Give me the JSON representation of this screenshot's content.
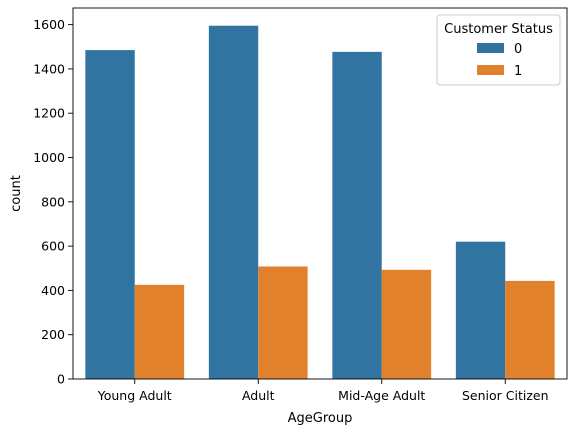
{
  "chart_data": {
    "type": "bar",
    "categories": [
      "Young Adult",
      "Adult",
      "Mid-Age Adult",
      "Senior Citizen"
    ],
    "series": [
      {
        "name": "0",
        "values": [
          1485,
          1595,
          1477,
          620
        ],
        "color": "#3274a1"
      },
      {
        "name": "1",
        "values": [
          425,
          508,
          493,
          443
        ],
        "color": "#e1812c"
      }
    ],
    "title": "",
    "xlabel": "AgeGroup",
    "ylabel": "count",
    "ylim": [
      0,
      1675
    ],
    "yticks": [
      0,
      200,
      400,
      600,
      800,
      1000,
      1200,
      1400,
      1600
    ],
    "grid": false,
    "legend": {
      "title": "Customer Status",
      "placement": "top-right"
    }
  }
}
